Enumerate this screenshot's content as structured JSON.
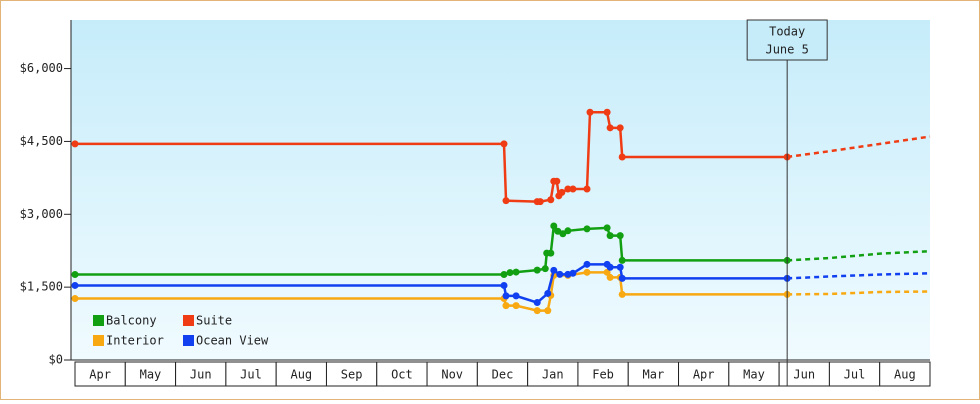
{
  "chart_data": {
    "type": "line",
    "x_categories": [
      "Apr",
      "May",
      "Jun",
      "Jul",
      "Aug",
      "Sep",
      "Oct",
      "Nov",
      "Dec",
      "Jan",
      "Feb",
      "Mar",
      "Apr",
      "May",
      "Jun",
      "Jul",
      "Aug"
    ],
    "xlim": [
      0,
      17
    ],
    "ylim": [
      0,
      7000
    ],
    "yticks": [
      {
        "value": 0,
        "label": "$0"
      },
      {
        "value": 1500,
        "label": "$1,500"
      },
      {
        "value": 3000,
        "label": "$3,000"
      },
      {
        "value": 4500,
        "label": "$4,500"
      },
      {
        "value": 6000,
        "label": "$6,000"
      }
    ],
    "annotation": {
      "x": 14.16,
      "text": [
        "Today",
        "June 5"
      ]
    },
    "legend": "lower left",
    "series": [
      {
        "name": "Balcony",
        "color": "#12a012",
        "x": [
          0,
          8.53,
          8.65,
          8.77,
          9.19,
          9.35,
          9.38,
          9.46,
          9.52,
          9.6,
          9.7,
          9.8,
          10.18,
          10.58,
          10.64,
          10.84,
          10.88,
          14.16
        ],
        "values": [
          1760,
          1760,
          1800,
          1810,
          1850,
          1880,
          2200,
          2200,
          2760,
          2650,
          2600,
          2660,
          2700,
          2720,
          2560,
          2560,
          2050,
          2050
        ],
        "projection_x": [
          14.16,
          15.01,
          16.01,
          17
        ],
        "projection_values": [
          2050,
          2100,
          2190,
          2240
        ]
      },
      {
        "name": "Suite",
        "color": "#f03c14",
        "x": [
          0,
          8.53,
          8.57,
          9.19,
          9.25,
          9.46,
          9.52,
          9.58,
          9.62,
          9.68,
          9.8,
          9.9,
          10.18,
          10.24,
          10.58,
          10.64,
          10.84,
          10.88,
          14.16
        ],
        "values": [
          4450,
          4450,
          3280,
          3260,
          3260,
          3300,
          3680,
          3680,
          3380,
          3450,
          3520,
          3520,
          3520,
          5100,
          5100,
          4780,
          4780,
          4180,
          4180
        ],
        "projection_x": [
          14.16,
          15.01,
          16.01,
          17
        ],
        "projection_values": [
          4180,
          4300,
          4450,
          4600
        ]
      },
      {
        "name": "Interior",
        "color": "#f8a810",
        "x": [
          0,
          8.53,
          8.57,
          8.77,
          9.19,
          9.4,
          9.46,
          9.52,
          9.8,
          10.18,
          10.58,
          10.64,
          10.84,
          10.88,
          14.16
        ],
        "values": [
          1265,
          1265,
          1120,
          1120,
          1017,
          1017,
          1330,
          1742,
          1742,
          1805,
          1805,
          1700,
          1700,
          1350,
          1350
        ],
        "projection_x": [
          14.16,
          15.01,
          16.01,
          17
        ],
        "projection_values": [
          1350,
          1360,
          1400,
          1410
        ]
      },
      {
        "name": "Ocean View",
        "color": "#1040f0",
        "x": [
          0,
          8.53,
          8.57,
          8.77,
          9.19,
          9.4,
          9.52,
          9.64,
          9.8,
          9.9,
          10.18,
          10.58,
          10.64,
          10.84,
          10.88,
          14.16
        ],
        "values": [
          1535,
          1535,
          1320,
          1320,
          1183,
          1370,
          1846,
          1763,
          1763,
          1785,
          1970,
          1970,
          1910,
          1910,
          1680,
          1680
        ],
        "projection_x": [
          14.16,
          15.01,
          16.01,
          17
        ],
        "projection_values": [
          1680,
          1720,
          1760,
          1785
        ]
      }
    ]
  }
}
